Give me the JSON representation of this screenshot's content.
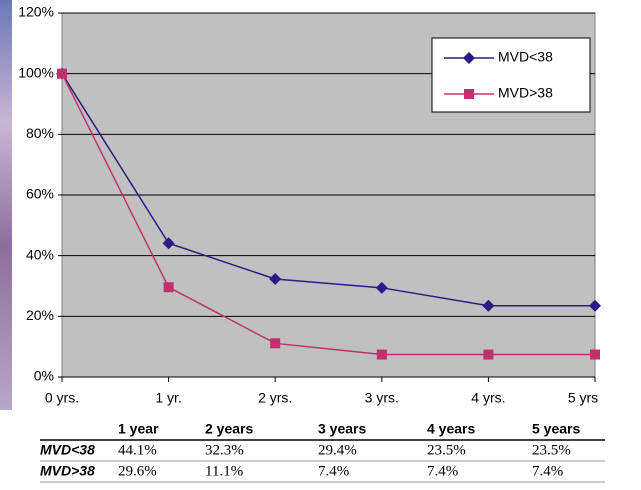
{
  "chart_data": {
    "type": "line",
    "categories": [
      "0 yrs.",
      "1 yr.",
      "2 yrs.",
      "3 yrs.",
      "4 yrs.",
      "5 yrs"
    ],
    "series": [
      {
        "name": "MVD<38",
        "color": "#2e1a87",
        "marker": "diamond",
        "values": [
          100,
          44.1,
          32.3,
          29.4,
          23.5,
          23.5
        ]
      },
      {
        "name": "MVD>38",
        "color": "#c0306e",
        "marker": "square",
        "values": [
          100,
          29.6,
          11.1,
          7.4,
          7.4,
          7.4
        ]
      }
    ],
    "ylim": [
      0,
      120
    ],
    "yticks": [
      {
        "value": 0,
        "label": "0%"
      },
      {
        "value": 20,
        "label": "20%"
      },
      {
        "value": 40,
        "label": "40%"
      },
      {
        "value": 60,
        "label": "60%"
      },
      {
        "value": 80,
        "label": "80%"
      },
      {
        "value": 100,
        "label": "100%"
      },
      {
        "value": 120,
        "label": "120%"
      }
    ],
    "grid": true,
    "legend": "upper right"
  },
  "table": {
    "header": [
      "1 year",
      "2 years",
      "3 years",
      "4 years",
      "5 years"
    ],
    "rows": [
      {
        "label": "MVD<38",
        "cells": [
          "44.1%",
          "32.3%",
          "29.4%",
          "23.5%",
          "23.5%"
        ]
      },
      {
        "label": "MVD>38",
        "cells": [
          "29.6%",
          "11.1%",
          "7.4%",
          "7.4%",
          "7.4%"
        ]
      }
    ]
  }
}
